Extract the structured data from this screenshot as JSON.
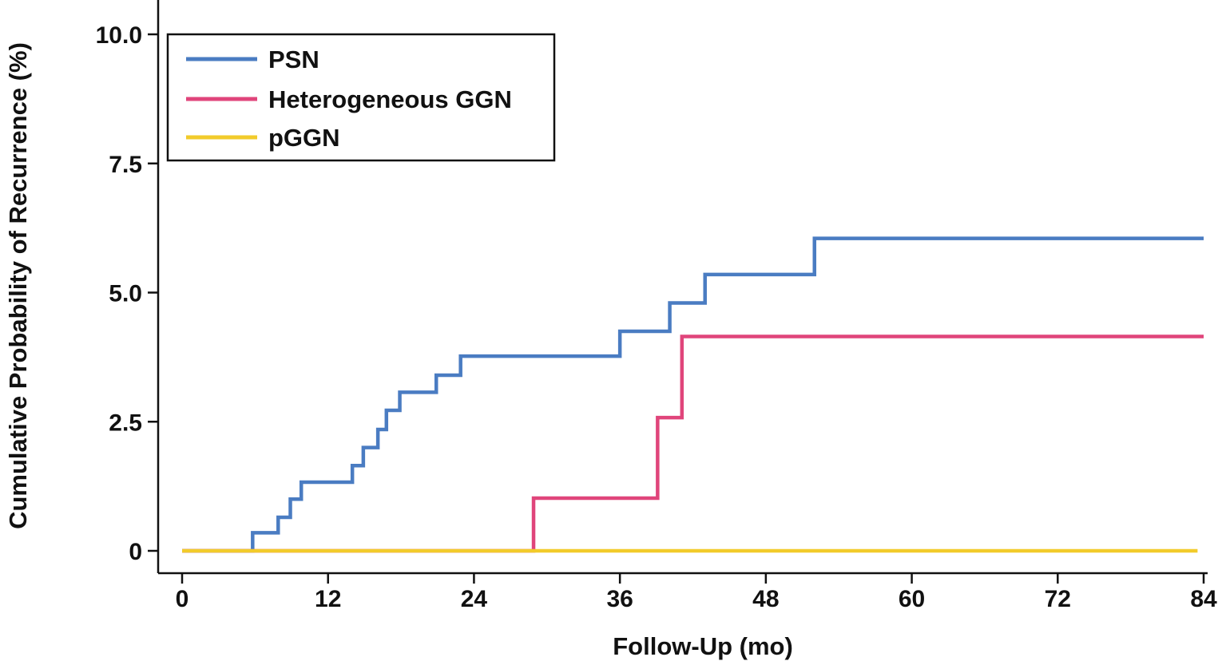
{
  "chart_data": {
    "type": "line",
    "step": true,
    "title": "",
    "xlabel": "Follow-Up (mo)",
    "ylabel": "Cumulative Probability of Recurrence (%)",
    "xlim": [
      0,
      84
    ],
    "ylim": [
      0,
      10
    ],
    "xticks": [
      0,
      12,
      24,
      36,
      48,
      60,
      72,
      84
    ],
    "xtick_labels": [
      "0",
      "12",
      "24",
      "36",
      "48",
      "60",
      "72",
      "84"
    ],
    "yticks": [
      0,
      2.5,
      5,
      7.5,
      10
    ],
    "ytick_labels": [
      "0",
      "2.5",
      "5.0",
      "7.5",
      "10.0"
    ],
    "grid": false,
    "legend_position": "top-left",
    "series": [
      {
        "name": "PSN",
        "color": "#4a7cc2",
        "x": [
          0,
          5.8,
          7.9,
          8.9,
          9.8,
          14,
          14.9,
          16.1,
          16.8,
          17.9,
          20.9,
          22.9,
          36,
          40.1,
          43,
          52,
          84
        ],
        "y": [
          0,
          0.35,
          0.65,
          1.0,
          1.33,
          1.65,
          2.0,
          2.35,
          2.72,
          3.07,
          3.4,
          3.77,
          4.25,
          4.8,
          5.35,
          6.05,
          6.05
        ]
      },
      {
        "name": "Heterogeneous GGN",
        "color": "#e0457b",
        "x": [
          0,
          28.9,
          39.1,
          41.1,
          84
        ],
        "y": [
          0,
          1.02,
          2.58,
          4.15,
          4.15
        ]
      },
      {
        "name": "pGGN",
        "color": "#f2cb2b",
        "x": [
          0,
          83.5
        ],
        "y": [
          0,
          0
        ]
      }
    ]
  }
}
